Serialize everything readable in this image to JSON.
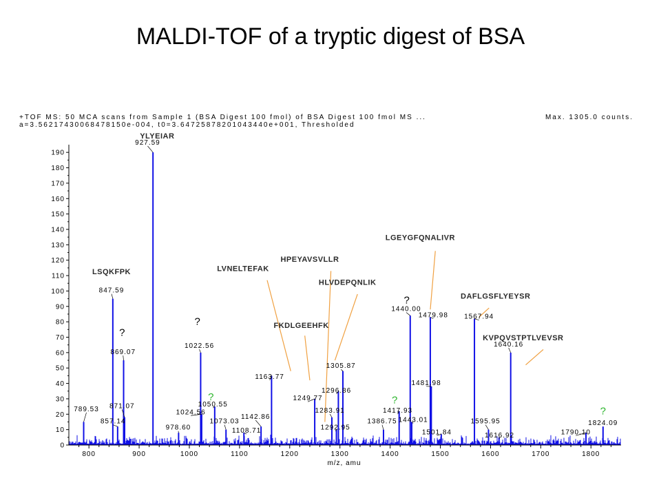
{
  "title": "MALDI-TOF of a tryptic digest of BSA",
  "chart_data": {
    "type": "bar",
    "header_line1": "+TOF MS: 50 MCA scans from Sample 1 (BSA Digest 100 fmol) of BSA Digest 100 fmol MS ...",
    "header_line2": "a=3.56217430068478150e-004, t0=3.64725878201043440e+001, Thresholded",
    "max_counts": "Max. 1305.0 counts.",
    "xlabel": "m/z, amu",
    "xlim": [
      760,
      1860
    ],
    "ylim": [
      0,
      195
    ],
    "x_ticks": [
      "800",
      "900",
      "1000",
      "1100",
      "1200",
      "1300",
      "1400",
      "1500",
      "1600",
      "1700",
      "1800"
    ],
    "y_ticks": [
      "0",
      "10",
      "20",
      "30",
      "40",
      "50",
      "60",
      "70",
      "80",
      "90",
      "100",
      "110",
      "120",
      "130",
      "140",
      "150",
      "160",
      "170",
      "180",
      "190"
    ],
    "peaks": [
      {
        "mz": 789.53,
        "label": "789.53",
        "intensity": 15,
        "lx": 795,
        "ly": 22
      },
      {
        "mz": 847.59,
        "label": "847.59",
        "intensity": 95,
        "lx": 845,
        "ly": 99
      },
      {
        "mz": 857.14,
        "label": "857.14",
        "intensity": 12,
        "lx": 848,
        "ly": 14
      },
      {
        "mz": 869.07,
        "label": "869.07",
        "intensity": 55,
        "lx": 868,
        "ly": 59
      },
      {
        "mz": 871.07,
        "label": "871.07",
        "intensity": 18,
        "lx": 866,
        "ly": 24
      },
      {
        "mz": 927.59,
        "label": "927.59",
        "intensity": 190,
        "lx": 917,
        "ly": 195
      },
      {
        "mz": 978.6,
        "label": "978.60",
        "intensity": 8,
        "lx": 978,
        "ly": 10
      },
      {
        "mz": 1022.56,
        "label": "1022.56",
        "intensity": 60,
        "lx": 1020,
        "ly": 63
      },
      {
        "mz": 1024.56,
        "label": "1024.56",
        "intensity": 20,
        "lx": 1003,
        "ly": 20
      },
      {
        "mz": 1050.55,
        "label": "1050.55",
        "intensity": 25,
        "lx": 1047,
        "ly": 25
      },
      {
        "mz": 1073.03,
        "label": "1073.03",
        "intensity": 10,
        "lx": 1070,
        "ly": 14
      },
      {
        "mz": 1108.71,
        "label": "1108.71",
        "intensity": 8,
        "lx": 1114,
        "ly": 8
      },
      {
        "mz": 1142.86,
        "label": "1142.86",
        "intensity": 12,
        "lx": 1132,
        "ly": 17
      },
      {
        "mz": 1163.77,
        "label": "1163.77",
        "intensity": 45,
        "lx": 1160,
        "ly": 43
      },
      {
        "mz": 1249.77,
        "label": "1249.77",
        "intensity": 30,
        "lx": 1236,
        "ly": 29
      },
      {
        "mz": 1283.91,
        "label": "1283.91",
        "intensity": 18,
        "lx": 1280,
        "ly": 21
      },
      {
        "mz": 1292.95,
        "label": "1292.95",
        "intensity": 10,
        "lx": 1291,
        "ly": 10
      },
      {
        "mz": 1296.86,
        "label": "1296.86",
        "intensity": 35,
        "lx": 1293,
        "ly": 34
      },
      {
        "mz": 1305.87,
        "label": "1305.87",
        "intensity": 48,
        "lx": 1302,
        "ly": 50
      },
      {
        "mz": 1386.75,
        "label": "1386.75",
        "intensity": 10,
        "lx": 1384,
        "ly": 14
      },
      {
        "mz": 1417.93,
        "label": "1417.93",
        "intensity": 22,
        "lx": 1415,
        "ly": 21
      },
      {
        "mz": 1440.0,
        "label": "1440.00",
        "intensity": 84,
        "lx": 1432,
        "ly": 87
      },
      {
        "mz": 1443.01,
        "label": "1443.01",
        "intensity": 15,
        "lx": 1446,
        "ly": 15
      },
      {
        "mz": 1479.98,
        "label": "1479.98",
        "intensity": 83,
        "lx": 1486,
        "ly": 83
      },
      {
        "mz": 1481.98,
        "label": "1481.98",
        "intensity": 38,
        "lx": 1472,
        "ly": 39
      },
      {
        "mz": 1501.84,
        "label": "1501.84",
        "intensity": 7,
        "lx": 1493,
        "ly": 7
      },
      {
        "mz": 1567.94,
        "label": "1567.94",
        "intensity": 82,
        "lx": 1577,
        "ly": 82
      },
      {
        "mz": 1595.95,
        "label": "1595.95",
        "intensity": 10,
        "lx": 1590,
        "ly": 14
      },
      {
        "mz": 1616.92,
        "label": "1616.92",
        "intensity": 5,
        "lx": 1618,
        "ly": 5
      },
      {
        "mz": 1640.16,
        "label": "1640.16",
        "intensity": 60,
        "lx": 1636,
        "ly": 64
      },
      {
        "mz": 1790.1,
        "label": "1790.10",
        "intensity": 8,
        "lx": 1770,
        "ly": 7
      },
      {
        "mz": 1824.09,
        "label": "1824.09",
        "intensity": 12,
        "lx": 1824,
        "ly": 13
      }
    ],
    "sequences": [
      {
        "text": "YLYEIAR",
        "x": 936,
        "y": 199,
        "line": false
      },
      {
        "text": "LSQKFPK",
        "x": 845,
        "y": 111,
        "line": false
      },
      {
        "text": "LVNELTEFAK",
        "x": 1107,
        "y": 113,
        "line": [
          1155,
          107,
          1202,
          48
        ]
      },
      {
        "text": "FKDLGEEHFK",
        "x": 1223,
        "y": 76,
        "line": [
          1230,
          71,
          1240,
          42
        ]
      },
      {
        "text": "HPEYAVSVLLR",
        "x": 1240,
        "y": 119,
        "line": [
          1282,
          113,
          1270,
          15
        ]
      },
      {
        "text": "HLVDEPQNLIK",
        "x": 1315,
        "y": 104,
        "line": [
          1335,
          98,
          1290,
          55
        ]
      },
      {
        "text": "LGEYGFQNALIVR",
        "x": 1460,
        "y": 133,
        "line": [
          1490,
          126,
          1480,
          88
        ]
      },
      {
        "text": "DAFLGSFLYEYSR",
        "x": 1610,
        "y": 95,
        "line": [
          1597,
          89,
          1577,
          83
        ]
      },
      {
        "text": "KVPQVSTPTLVEVSR",
        "x": 1665,
        "y": 68,
        "line": [
          1705,
          62,
          1670,
          52
        ]
      }
    ],
    "question_marks": [
      {
        "text": "?",
        "color": "black",
        "x": 866,
        "y": 71
      },
      {
        "text": "?",
        "color": "black",
        "x": 1016,
        "y": 78
      },
      {
        "text": "?",
        "color": "black",
        "x": 1433,
        "y": 92
      },
      {
        "text": "?",
        "color": "green",
        "x": 1043,
        "y": 29
      },
      {
        "text": "?",
        "color": "green",
        "x": 1409,
        "y": 27
      },
      {
        "text": "?",
        "color": "green",
        "x": 1824,
        "y": 20
      }
    ],
    "colors": {
      "spectrum": "#1010e6",
      "annotation_line": "#f0a040",
      "green_mark": "#2db52d"
    }
  }
}
